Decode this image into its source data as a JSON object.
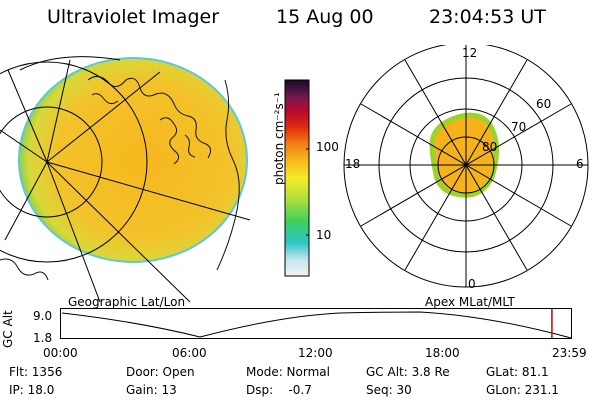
{
  "header": {
    "title": "Ultraviolet Imager",
    "date": "15 Aug 00",
    "time": "23:04:53 UT"
  },
  "colorbar": {
    "unit_label": "photon cm⁻²s⁻¹",
    "ticks": [
      "100",
      "10"
    ]
  },
  "panels": {
    "left_label": "Geographic Lat/Lon",
    "right_label": "Apex MLat/MLT"
  },
  "polar": {
    "mlt": {
      "top": "12",
      "left": "18",
      "right": "6",
      "bottom": "0"
    },
    "lat": {
      "l60": "60",
      "l70": "70",
      "l80": "80"
    }
  },
  "altitude_plot": {
    "ylabel": "GC Alt",
    "yticks": [
      "9.0",
      "1.8"
    ],
    "xticks": [
      "00:00",
      "06:00",
      "12:00",
      "18:00",
      "23:59"
    ],
    "current_marker_hour": 23.08
  },
  "info": {
    "row1": {
      "flt": "Flt: 1356",
      "door": "Door: Open",
      "mode": "Mode: Normal",
      "gcalt": "GC Alt: 3.8 Re",
      "glat": "GLat: 81.1"
    },
    "row2": {
      "ip": "IP: 18.0",
      "gain": "Gain: 13",
      "dsp": "Dsp:    -0.7",
      "seq": "Seq: 30",
      "glon": "GLon: 231.1"
    }
  },
  "colors": {
    "aurora_fill": "#f5b21a",
    "aurora_rim": "#9bd32a",
    "marker": "#cc0000"
  }
}
